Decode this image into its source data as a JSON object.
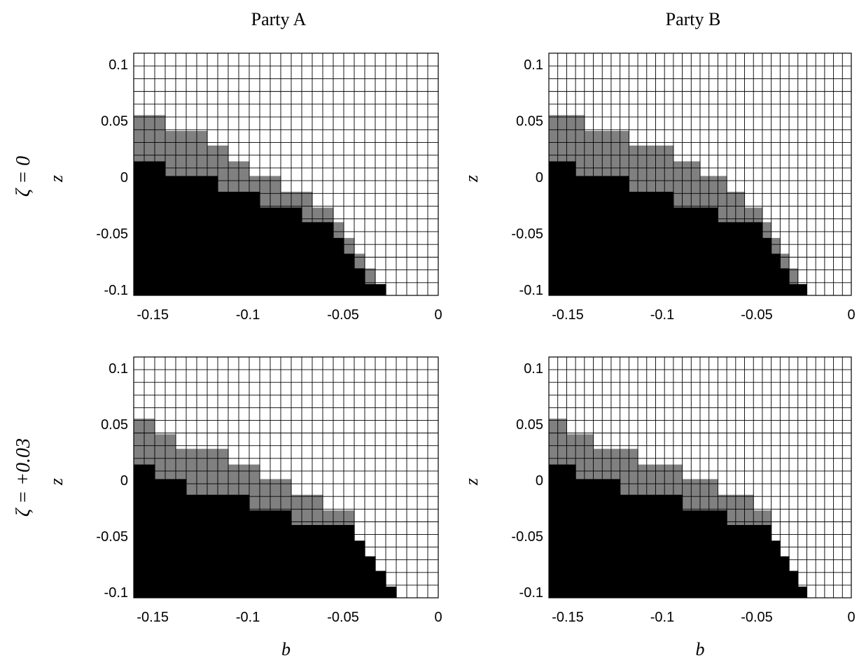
{
  "column_titles": [
    "Party A",
    "Party B"
  ],
  "row_labels": [
    "ζ = 0",
    "ζ = +0.03"
  ],
  "xlabel": "b",
  "ylabel": "z",
  "chart_data": {
    "type": "heatmap",
    "x_range": [
      -0.16,
      0
    ],
    "y_range": [
      -0.105,
      0.11
    ],
    "x_ticks": [
      "-0.15",
      "-0.1",
      "-0.05",
      "0"
    ],
    "y_ticks": [
      "0.1",
      "0.05",
      "0",
      "-0.05",
      "-0.1"
    ],
    "colors": {
      "black_region": "#000000",
      "gray_region": "#808080",
      "white_region": "#ffffff"
    },
    "panels": [
      {
        "column": "Party A",
        "row": "ζ = 0",
        "gray_top_z": [
          0.055,
          0.055,
          0.055,
          0.041,
          0.041,
          0.041,
          0.041,
          0.028,
          0.028,
          0.014,
          0.014,
          0.001,
          0.001,
          0.001,
          -0.013,
          -0.013,
          -0.013,
          -0.027,
          -0.027,
          -0.04,
          -0.054,
          -0.068,
          -0.081,
          -0.095,
          -0.109
        ],
        "black_top_z": [
          0.014,
          0.014,
          0.014,
          0.001,
          0.001,
          0.001,
          0.001,
          0.001,
          -0.013,
          -0.013,
          -0.013,
          -0.013,
          -0.027,
          -0.027,
          -0.027,
          -0.027,
          -0.04,
          -0.04,
          -0.04,
          -0.054,
          -0.068,
          -0.081,
          -0.095,
          -0.095,
          -0.109
        ]
      },
      {
        "column": "Party B",
        "row": "ζ = 0",
        "gray_top_z": [
          0.055,
          0.055,
          0.055,
          0.055,
          0.041,
          0.041,
          0.041,
          0.041,
          0.041,
          0.028,
          0.028,
          0.028,
          0.028,
          0.028,
          0.014,
          0.014,
          0.014,
          0.001,
          0.001,
          0.001,
          -0.013,
          -0.013,
          -0.027,
          -0.027,
          -0.04,
          -0.054,
          -0.068,
          -0.081,
          -0.095,
          -0.109
        ],
        "black_top_z": [
          0.014,
          0.014,
          0.014,
          0.001,
          0.001,
          0.001,
          0.001,
          0.001,
          0.001,
          -0.013,
          -0.013,
          -0.013,
          -0.013,
          -0.013,
          -0.027,
          -0.027,
          -0.027,
          -0.027,
          -0.027,
          -0.04,
          -0.04,
          -0.04,
          -0.04,
          -0.04,
          -0.054,
          -0.068,
          -0.081,
          -0.095,
          -0.095,
          -0.109
        ]
      },
      {
        "column": "Party A",
        "row": "ζ = +0.03",
        "gray_top_z": [
          0.055,
          0.055,
          0.041,
          0.041,
          0.028,
          0.028,
          0.028,
          0.028,
          0.028,
          0.014,
          0.014,
          0.014,
          0.001,
          0.001,
          0.001,
          -0.013,
          -0.013,
          -0.013,
          -0.027,
          -0.027,
          -0.027,
          -0.054,
          -0.068,
          -0.081,
          -0.095
        ],
        "black_top_z": [
          0.014,
          0.014,
          0.001,
          0.001,
          0.001,
          -0.013,
          -0.013,
          -0.013,
          -0.013,
          -0.013,
          -0.013,
          -0.027,
          -0.027,
          -0.027,
          -0.027,
          -0.04,
          -0.04,
          -0.04,
          -0.04,
          -0.04,
          -0.04,
          -0.054,
          -0.068,
          -0.081,
          -0.095
        ]
      },
      {
        "column": "Party B",
        "row": "ζ = +0.03",
        "gray_top_z": [
          0.055,
          0.055,
          0.041,
          0.041,
          0.041,
          0.028,
          0.028,
          0.028,
          0.028,
          0.028,
          0.014,
          0.014,
          0.014,
          0.014,
          0.014,
          0.001,
          0.001,
          0.001,
          0.001,
          -0.013,
          -0.013,
          -0.013,
          -0.013,
          -0.027,
          -0.027,
          -0.054,
          -0.068,
          -0.081,
          -0.095,
          -0.109
        ],
        "black_top_z": [
          0.014,
          0.014,
          0.014,
          0.001,
          0.001,
          0.001,
          0.001,
          0.001,
          -0.013,
          -0.013,
          -0.013,
          -0.013,
          -0.013,
          -0.013,
          -0.013,
          -0.027,
          -0.027,
          -0.027,
          -0.027,
          -0.027,
          -0.04,
          -0.04,
          -0.04,
          -0.04,
          -0.04,
          -0.054,
          -0.068,
          -0.081,
          -0.095,
          -0.109
        ]
      }
    ]
  }
}
